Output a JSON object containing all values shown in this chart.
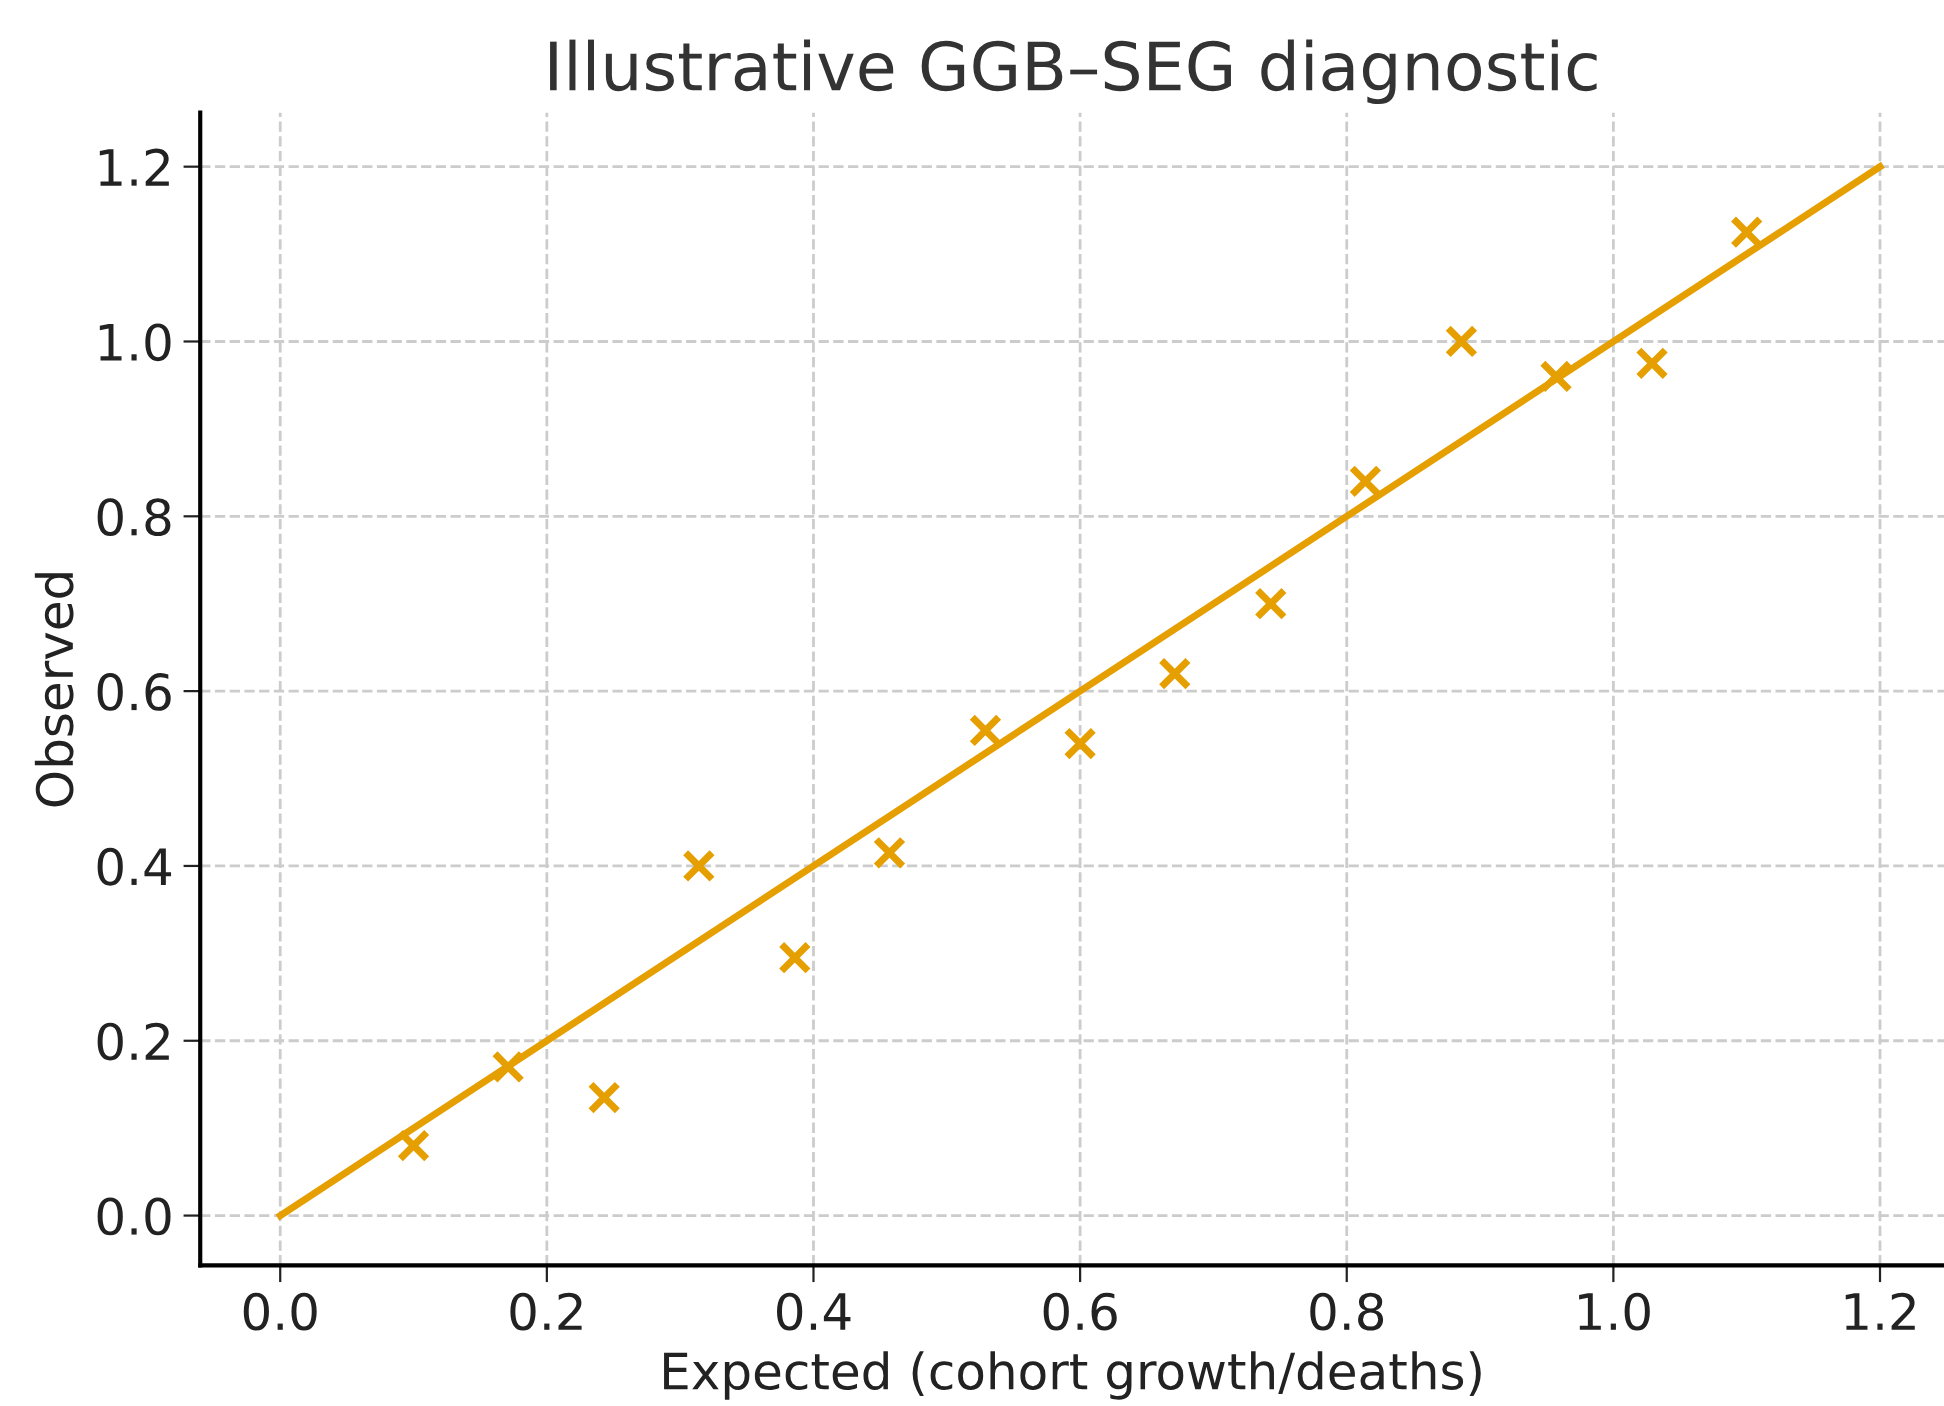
{
  "chart_data": {
    "type": "scatter",
    "title": "Illustrative GGB–SEG diagnostic",
    "xlabel": "Expected (cohort growth/deaths)",
    "ylabel": "Observed",
    "series": [
      {
        "color": "#e69f00",
        "marker": "cross",
        "x": [
          0.1,
          0.171,
          0.243,
          0.314,
          0.386,
          0.457,
          0.529,
          0.6,
          0.671,
          0.743,
          0.814,
          0.886,
          0.957,
          1.029,
          1.1
        ],
        "values": [
          0.08,
          0.17,
          0.135,
          0.4,
          0.295,
          0.415,
          0.555,
          0.54,
          0.62,
          0.7,
          0.84,
          1.0,
          0.96,
          0.975,
          1.125
        ]
      },
      {
        "type": "line",
        "color": "#e69f00",
        "marker": "none",
        "line_style": "solid",
        "x": [
          0,
          1.2
        ],
        "values": [
          0,
          1.2
        ]
      }
    ],
    "xlim": [
      -0.06,
      1.248
    ],
    "ylim": [
      -0.057,
      1.262
    ],
    "xticks": [
      {
        "value": 0,
        "label": "0.0"
      },
      0.2,
      0.4,
      0.6,
      0.8,
      {
        "value": 1,
        "label": "1.0"
      },
      1.2
    ],
    "yticks": [
      {
        "value": 0,
        "label": "0.0"
      },
      0.2,
      0.4,
      0.6,
      0.8,
      {
        "value": 1,
        "label": "1.0"
      },
      1.2
    ],
    "grid": true,
    "legend": false
  }
}
